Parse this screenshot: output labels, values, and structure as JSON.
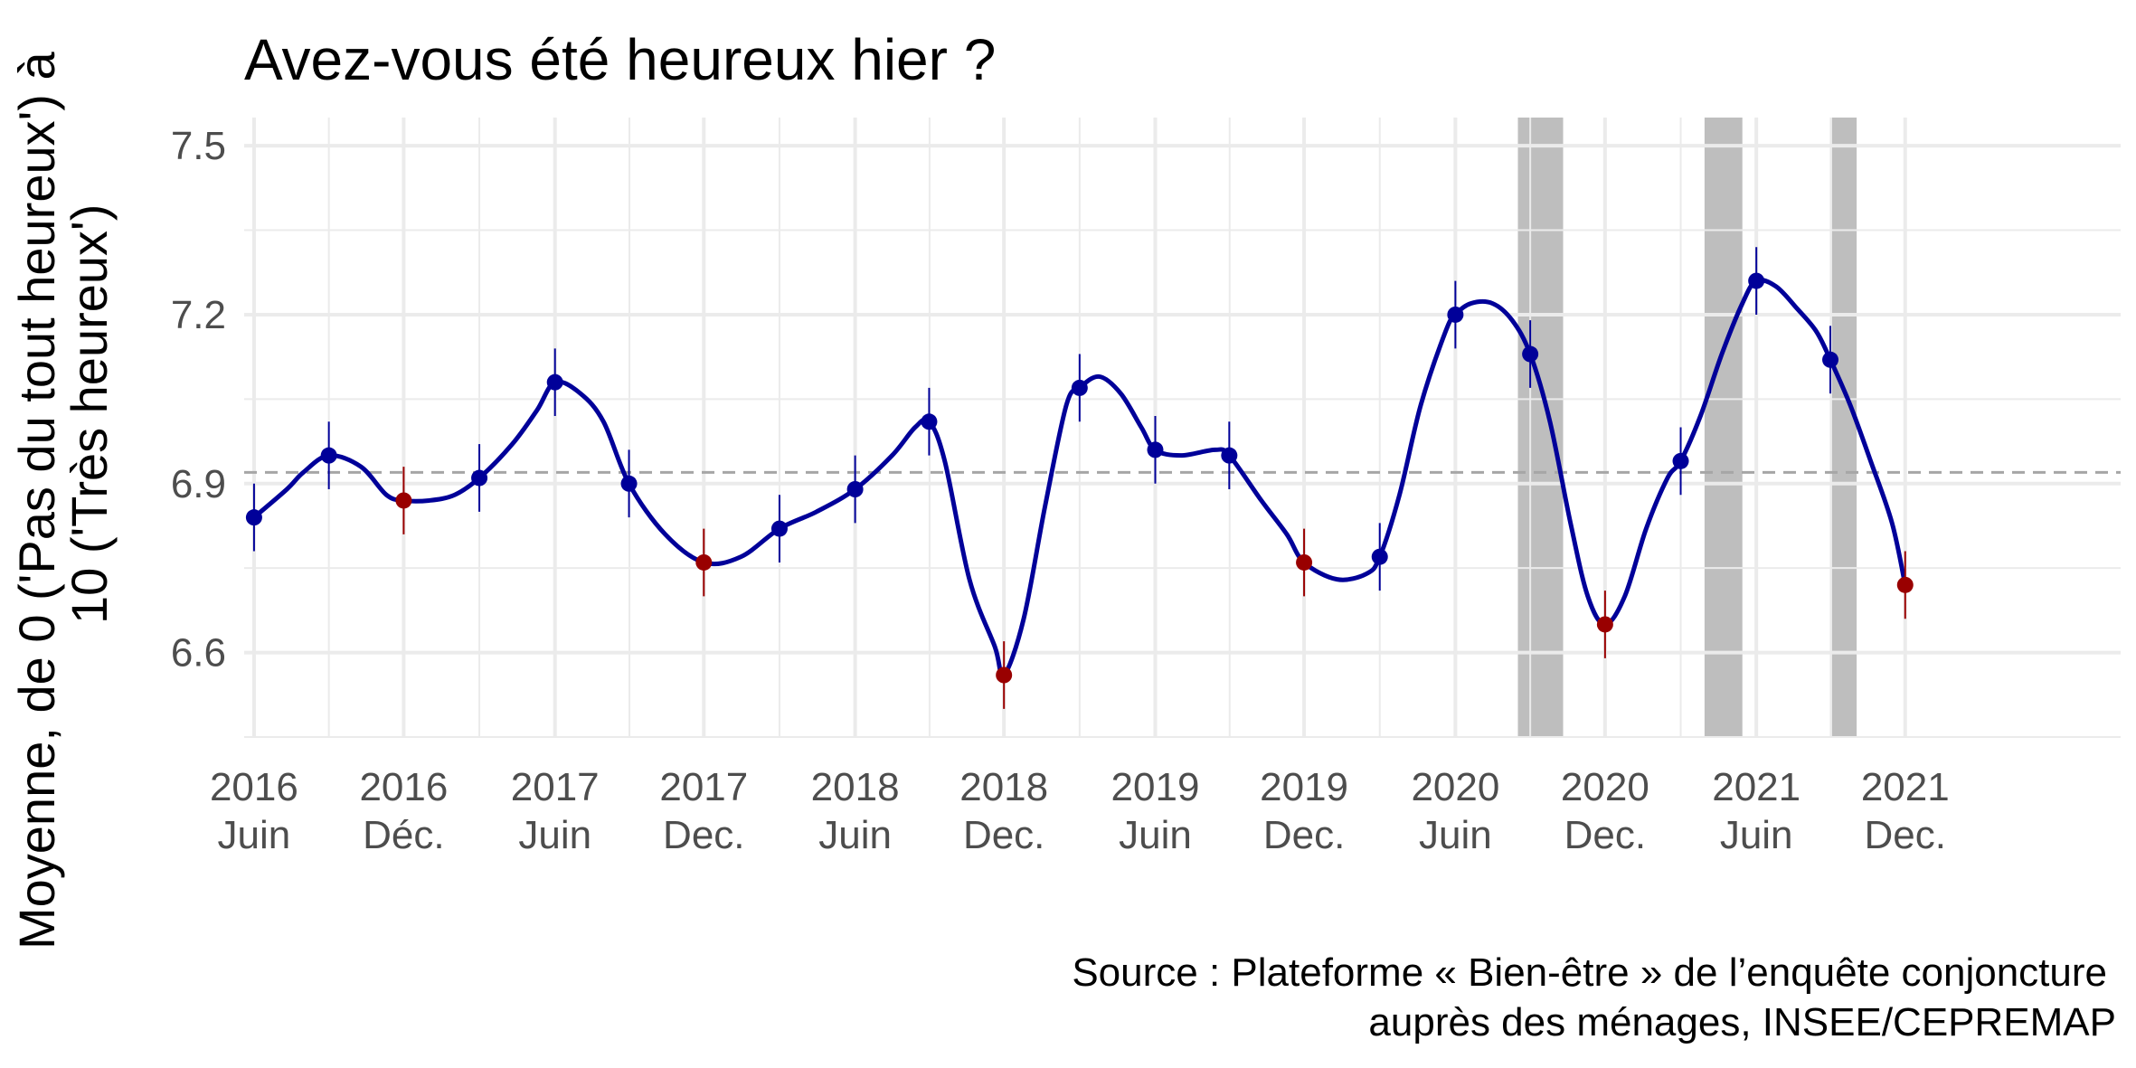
{
  "chart_data": {
    "type": "line",
    "title": "Avez-vous été heureux hier ?",
    "ylabel_lines": [
      "Moyenne, de 0 ('Pas du tout heureux') à",
      "10 ('Très heureux')"
    ],
    "xlabel": "",
    "caption_lines": [
      "Source : Plateforme « Bien-être » de l’enquête conjoncture",
      "auprès des ménages, INSEE/CEPREMAP"
    ],
    "ylim": [
      6.45,
      7.55
    ],
    "yticks": [
      {
        "value": 6.6,
        "label": "6.6"
      },
      {
        "value": 6.9,
        "label": "6.9"
      },
      {
        "value": 7.2,
        "label": "7.2"
      },
      {
        "value": 7.5,
        "label": "7.5"
      }
    ],
    "y_minor_gridlines": [
      6.45,
      6.75,
      7.05,
      7.35
    ],
    "xlim": [
      "2015-12-20",
      "2022-03-20"
    ],
    "xticks": [
      {
        "date": "2016-01-01",
        "year": "2016",
        "period": "Juin"
      },
      {
        "date": "2016-07-01",
        "year": "2016",
        "period": "Déc."
      },
      {
        "date": "2017-01-01",
        "year": "2017",
        "period": "Juin"
      },
      {
        "date": "2017-07-01",
        "year": "2017",
        "period": "Dec."
      },
      {
        "date": "2018-01-01",
        "year": "2018",
        "period": "Juin"
      },
      {
        "date": "2018-07-01",
        "year": "2018",
        "period": "Dec."
      },
      {
        "date": "2019-01-01",
        "year": "2019",
        "period": "Juin"
      },
      {
        "date": "2019-07-01",
        "year": "2019",
        "period": "Dec."
      },
      {
        "date": "2020-01-01",
        "year": "2020",
        "period": "Juin"
      },
      {
        "date": "2020-07-01",
        "year": "2020",
        "period": "Dec."
      },
      {
        "date": "2021-01-01",
        "year": "2021",
        "period": "Juin"
      },
      {
        "date": "2021-07-01",
        "year": "2021",
        "period": "Dec."
      }
    ],
    "reference_line": {
      "value": 6.92,
      "style": "dashed",
      "color": "#a6a6a6"
    },
    "shaded_periods": [
      {
        "start": "2020-03-17",
        "end": "2020-05-11"
      },
      {
        "start": "2020-10-30",
        "end": "2020-12-15"
      },
      {
        "start": "2021-04-03",
        "end": "2021-05-03"
      }
    ],
    "series": [
      {
        "color_line": "#000099",
        "color_point_december": "#990000",
        "points": [
          {
            "date": "2016-01-01",
            "value": 6.84,
            "lo": 6.78,
            "hi": 6.9,
            "december": false
          },
          {
            "date": "2016-04-01",
            "value": 6.95,
            "lo": 6.89,
            "hi": 7.01,
            "december": false
          },
          {
            "date": "2016-07-01",
            "value": 6.87,
            "lo": 6.81,
            "hi": 6.93,
            "december": true
          },
          {
            "date": "2016-10-01",
            "value": 6.91,
            "lo": 6.85,
            "hi": 6.97,
            "december": false
          },
          {
            "date": "2017-01-01",
            "value": 7.08,
            "lo": 7.02,
            "hi": 7.14,
            "december": false
          },
          {
            "date": "2017-04-01",
            "value": 6.9,
            "lo": 6.84,
            "hi": 6.96,
            "december": false
          },
          {
            "date": "2017-07-01",
            "value": 6.76,
            "lo": 6.7,
            "hi": 6.82,
            "december": true
          },
          {
            "date": "2017-10-01",
            "value": 6.82,
            "lo": 6.76,
            "hi": 6.88,
            "december": false
          },
          {
            "date": "2018-01-01",
            "value": 6.89,
            "lo": 6.83,
            "hi": 6.95,
            "december": false
          },
          {
            "date": "2018-04-01",
            "value": 7.01,
            "lo": 6.95,
            "hi": 7.07,
            "december": false
          },
          {
            "date": "2018-07-01",
            "value": 6.56,
            "lo": 6.5,
            "hi": 6.62,
            "december": true
          },
          {
            "date": "2018-10-01",
            "value": 7.07,
            "lo": 7.01,
            "hi": 7.13,
            "december": false
          },
          {
            "date": "2019-01-01",
            "value": 6.96,
            "lo": 6.9,
            "hi": 7.02,
            "december": false
          },
          {
            "date": "2019-04-01",
            "value": 6.95,
            "lo": 6.89,
            "hi": 7.01,
            "december": false
          },
          {
            "date": "2019-07-01",
            "value": 6.76,
            "lo": 6.7,
            "hi": 6.82,
            "december": true
          },
          {
            "date": "2019-10-01",
            "value": 6.77,
            "lo": 6.71,
            "hi": 6.83,
            "december": false
          },
          {
            "date": "2020-01-01",
            "value": 7.2,
            "lo": 7.14,
            "hi": 7.26,
            "december": false
          },
          {
            "date": "2020-04-01",
            "value": 7.13,
            "lo": 7.07,
            "hi": 7.19,
            "december": false
          },
          {
            "date": "2020-07-01",
            "value": 6.65,
            "lo": 6.59,
            "hi": 6.71,
            "december": true
          },
          {
            "date": "2020-10-01",
            "value": 6.94,
            "lo": 6.88,
            "hi": 7.0,
            "december": false
          },
          {
            "date": "2021-01-01",
            "value": 7.26,
            "lo": 7.2,
            "hi": 7.32,
            "december": false
          },
          {
            "date": "2021-04-01",
            "value": 7.12,
            "lo": 7.06,
            "hi": 7.18,
            "december": false
          },
          {
            "date": "2021-07-01",
            "value": 6.72,
            "lo": 6.66,
            "hi": 6.78,
            "december": true
          }
        ],
        "smooth_curve": [
          {
            "date": "2016-01-01",
            "value": 6.84
          },
          {
            "date": "2016-02-10",
            "value": 6.89
          },
          {
            "date": "2016-03-01",
            "value": 6.92
          },
          {
            "date": "2016-04-01",
            "value": 6.95
          },
          {
            "date": "2016-05-10",
            "value": 6.93
          },
          {
            "date": "2016-06-10",
            "value": 6.88
          },
          {
            "date": "2016-07-01",
            "value": 6.87
          },
          {
            "date": "2016-08-01",
            "value": 6.87
          },
          {
            "date": "2016-09-01",
            "value": 6.88
          },
          {
            "date": "2016-10-01",
            "value": 6.91
          },
          {
            "date": "2016-11-10",
            "value": 6.97
          },
          {
            "date": "2016-12-10",
            "value": 7.03
          },
          {
            "date": "2017-01-01",
            "value": 7.08
          },
          {
            "date": "2017-02-01",
            "value": 7.06
          },
          {
            "date": "2017-03-01",
            "value": 7.01
          },
          {
            "date": "2017-04-01",
            "value": 6.9
          },
          {
            "date": "2017-05-15",
            "value": 6.81
          },
          {
            "date": "2017-07-01",
            "value": 6.76
          },
          {
            "date": "2017-08-15",
            "value": 6.77
          },
          {
            "date": "2017-10-01",
            "value": 6.82
          },
          {
            "date": "2017-11-15",
            "value": 6.85
          },
          {
            "date": "2018-01-01",
            "value": 6.89
          },
          {
            "date": "2018-02-15",
            "value": 6.95
          },
          {
            "date": "2018-03-15",
            "value": 7.0
          },
          {
            "date": "2018-04-01",
            "value": 7.01
          },
          {
            "date": "2018-04-20",
            "value": 6.94
          },
          {
            "date": "2018-05-20",
            "value": 6.73
          },
          {
            "date": "2018-06-20",
            "value": 6.61
          },
          {
            "date": "2018-07-01",
            "value": 6.56
          },
          {
            "date": "2018-07-25",
            "value": 6.66
          },
          {
            "date": "2018-08-20",
            "value": 6.86
          },
          {
            "date": "2018-09-15",
            "value": 7.04
          },
          {
            "date": "2018-10-01",
            "value": 7.07
          },
          {
            "date": "2018-10-25",
            "value": 7.09
          },
          {
            "date": "2018-11-20",
            "value": 7.06
          },
          {
            "date": "2018-12-15",
            "value": 7.0
          },
          {
            "date": "2019-01-01",
            "value": 6.96
          },
          {
            "date": "2019-02-01",
            "value": 6.95
          },
          {
            "date": "2019-03-15",
            "value": 6.96
          },
          {
            "date": "2019-04-01",
            "value": 6.95
          },
          {
            "date": "2019-05-10",
            "value": 6.87
          },
          {
            "date": "2019-06-10",
            "value": 6.81
          },
          {
            "date": "2019-07-01",
            "value": 6.76
          },
          {
            "date": "2019-08-10",
            "value": 6.73
          },
          {
            "date": "2019-09-15",
            "value": 6.74
          },
          {
            "date": "2019-10-01",
            "value": 6.77
          },
          {
            "date": "2019-10-25",
            "value": 6.88
          },
          {
            "date": "2019-11-20",
            "value": 7.04
          },
          {
            "date": "2019-12-20",
            "value": 7.17
          },
          {
            "date": "2020-01-01",
            "value": 7.2
          },
          {
            "date": "2020-01-20",
            "value": 7.22
          },
          {
            "date": "2020-02-15",
            "value": 7.22
          },
          {
            "date": "2020-03-10",
            "value": 7.19
          },
          {
            "date": "2020-04-01",
            "value": 7.13
          },
          {
            "date": "2020-04-25",
            "value": 7.01
          },
          {
            "date": "2020-05-20",
            "value": 6.83
          },
          {
            "date": "2020-06-10",
            "value": 6.7
          },
          {
            "date": "2020-07-01",
            "value": 6.65
          },
          {
            "date": "2020-07-25",
            "value": 6.7
          },
          {
            "date": "2020-08-20",
            "value": 6.82
          },
          {
            "date": "2020-09-15",
            "value": 6.91
          },
          {
            "date": "2020-10-01",
            "value": 6.94
          },
          {
            "date": "2020-10-25",
            "value": 7.02
          },
          {
            "date": "2020-11-20",
            "value": 7.13
          },
          {
            "date": "2020-12-15",
            "value": 7.22
          },
          {
            "date": "2021-01-01",
            "value": 7.26
          },
          {
            "date": "2021-01-25",
            "value": 7.25
          },
          {
            "date": "2021-02-20",
            "value": 7.21
          },
          {
            "date": "2021-03-15",
            "value": 7.17
          },
          {
            "date": "2021-04-01",
            "value": 7.12
          },
          {
            "date": "2021-04-25",
            "value": 7.04
          },
          {
            "date": "2021-05-20",
            "value": 6.94
          },
          {
            "date": "2021-06-15",
            "value": 6.83
          },
          {
            "date": "2021-07-01",
            "value": 6.72
          }
        ]
      }
    ],
    "colors": {
      "line": "#000099",
      "point_default": "#000099",
      "point_december": "#990000",
      "shading": "#bebebe",
      "grid": "#ebebeb",
      "reference": "#a6a6a6"
    },
    "grid": true,
    "legend": "none"
  }
}
